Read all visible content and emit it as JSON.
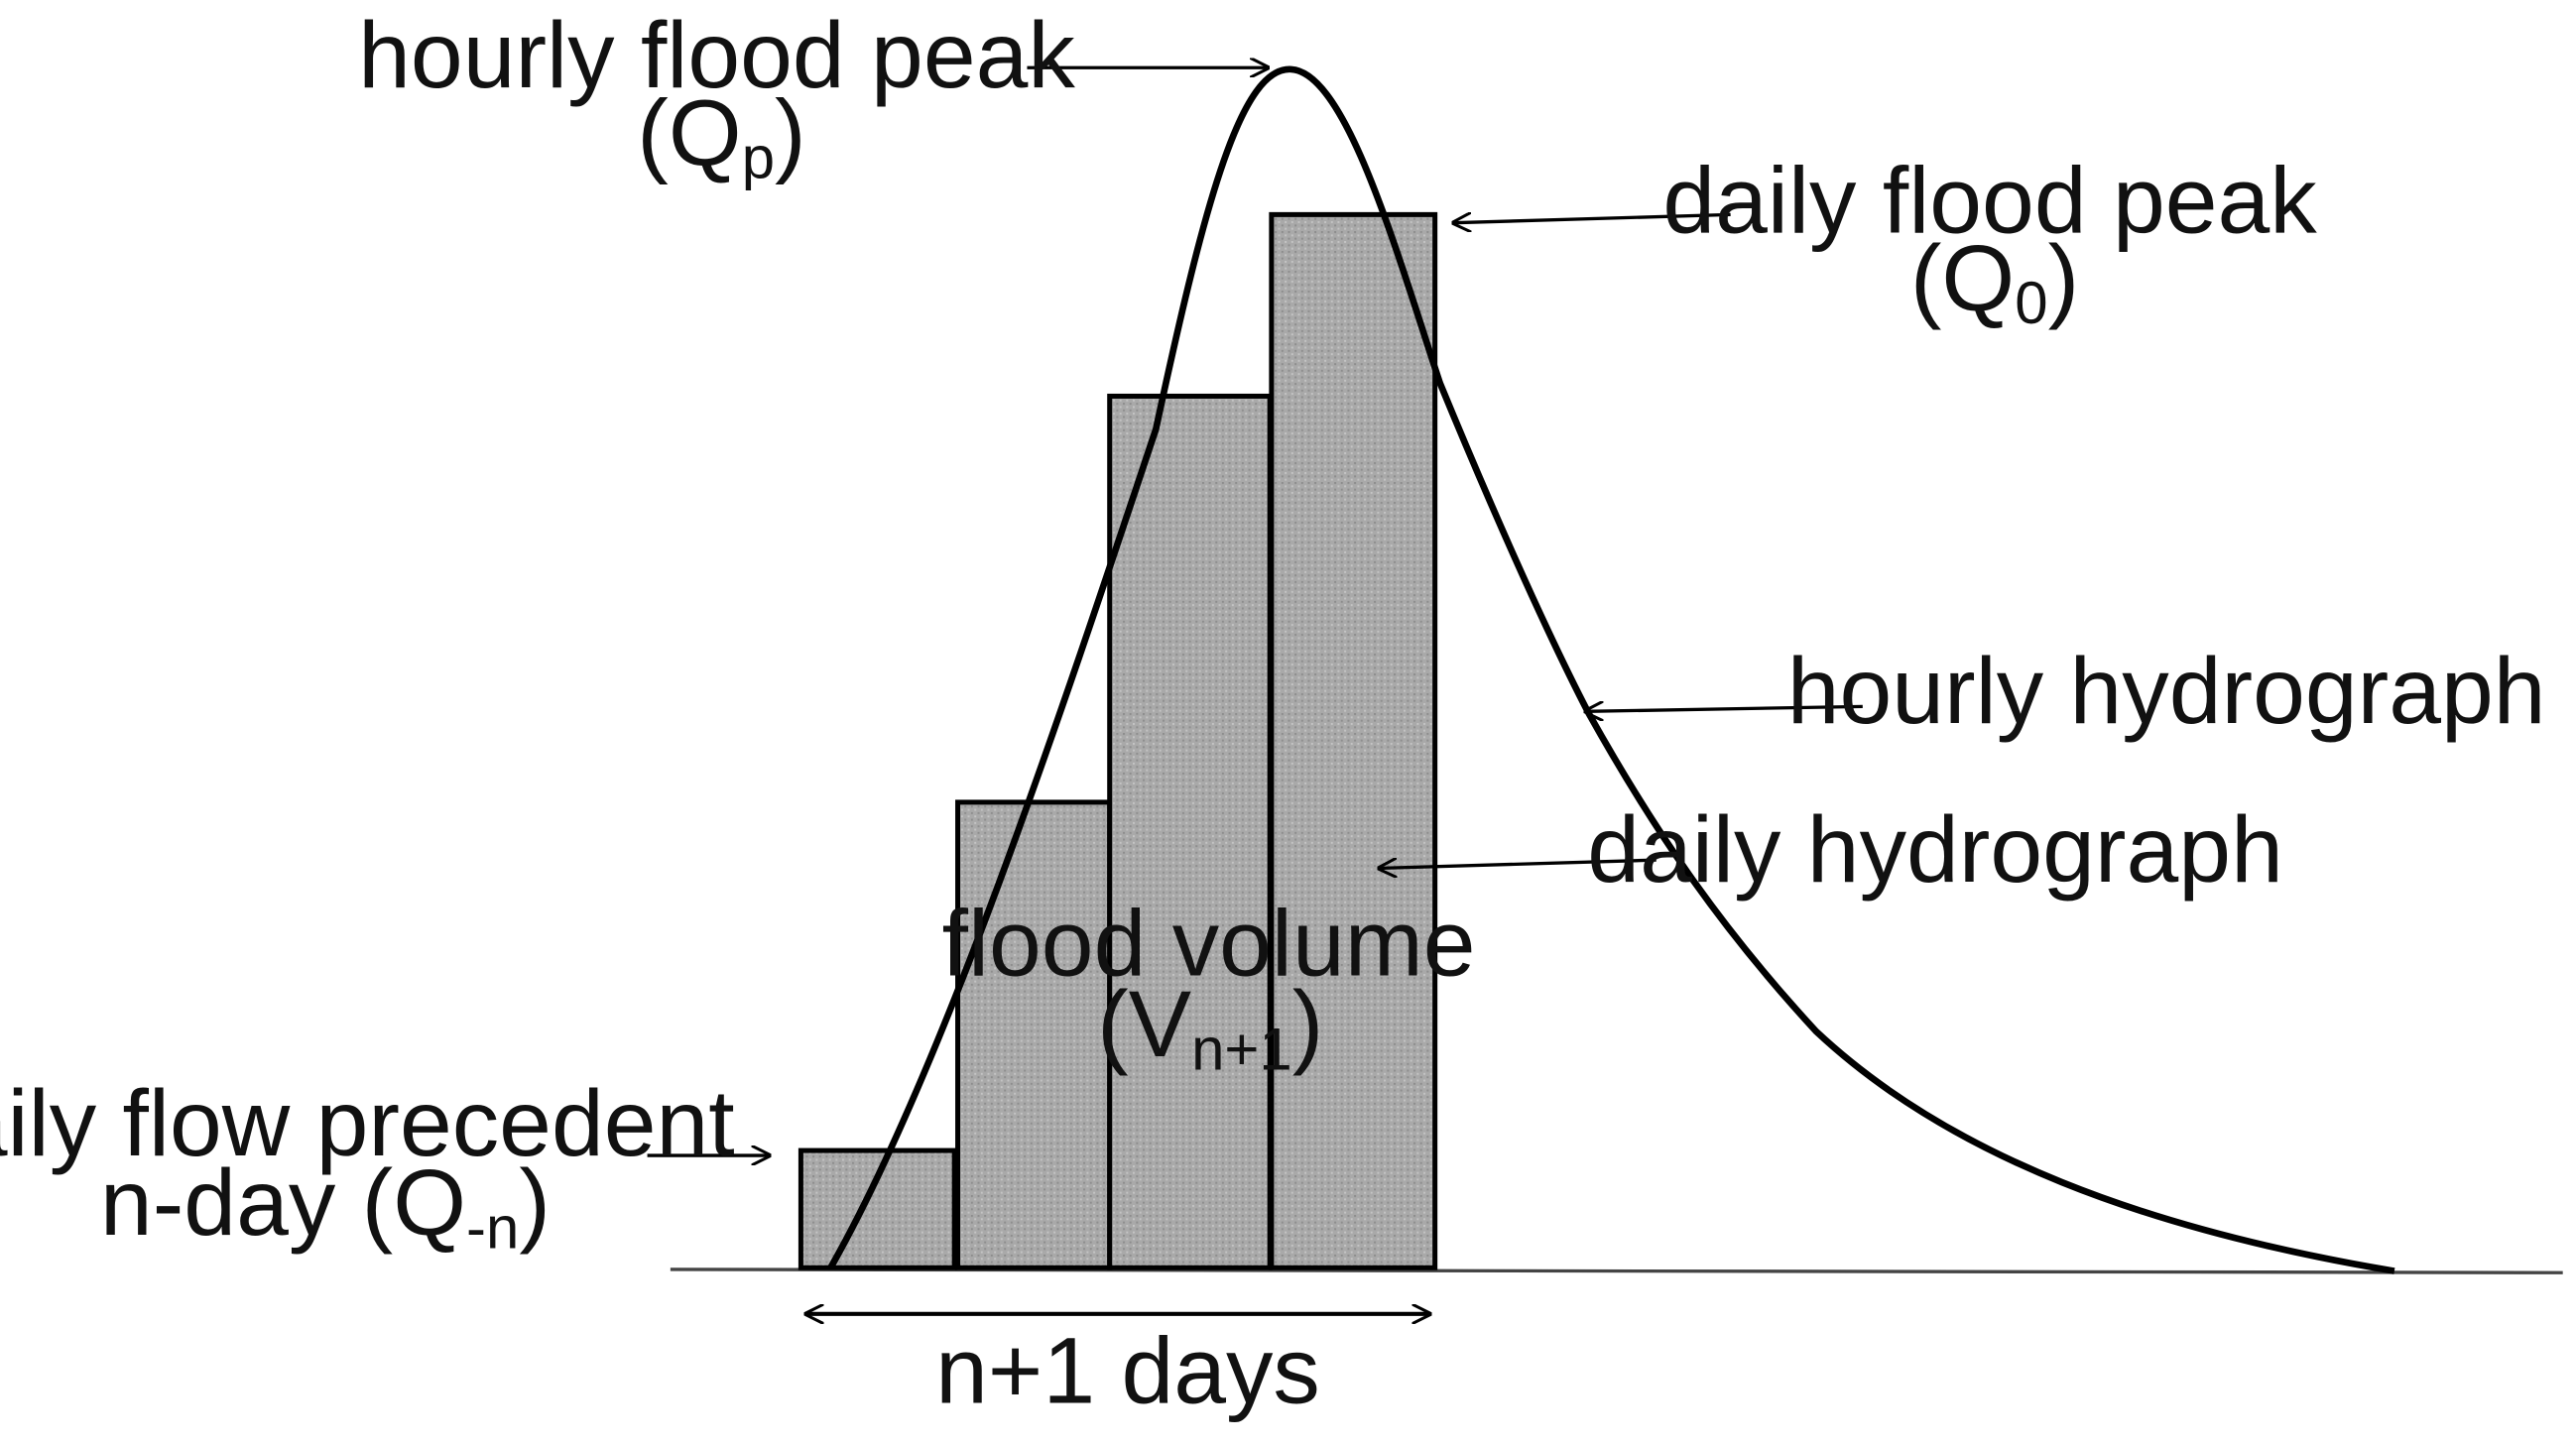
{
  "labels": {
    "hourly_flood_peak": {
      "line1": "hourly flood peak",
      "symbol_main": "Q",
      "symbol_sub": "p"
    },
    "daily_flood_peak": {
      "line1": "daily flood peak",
      "symbol_main": "Q",
      "symbol_sub": "0"
    },
    "hourly_hydrograph": "hourly hydrograph",
    "daily_hydrograph": "daily hydrograph",
    "flood_volume": {
      "line1": "flood volume",
      "symbol_main": "V",
      "symbol_sub": "n+1"
    },
    "daily_flow_precedent": {
      "line1": "daily flow precedent",
      "line2_prefix": "n-day (",
      "symbol_main": "Q",
      "symbol_sub": "-n"
    },
    "duration": "n+1 days"
  },
  "colors": {
    "bar_fill": "#a9a9a9",
    "stroke": "#000000"
  }
}
